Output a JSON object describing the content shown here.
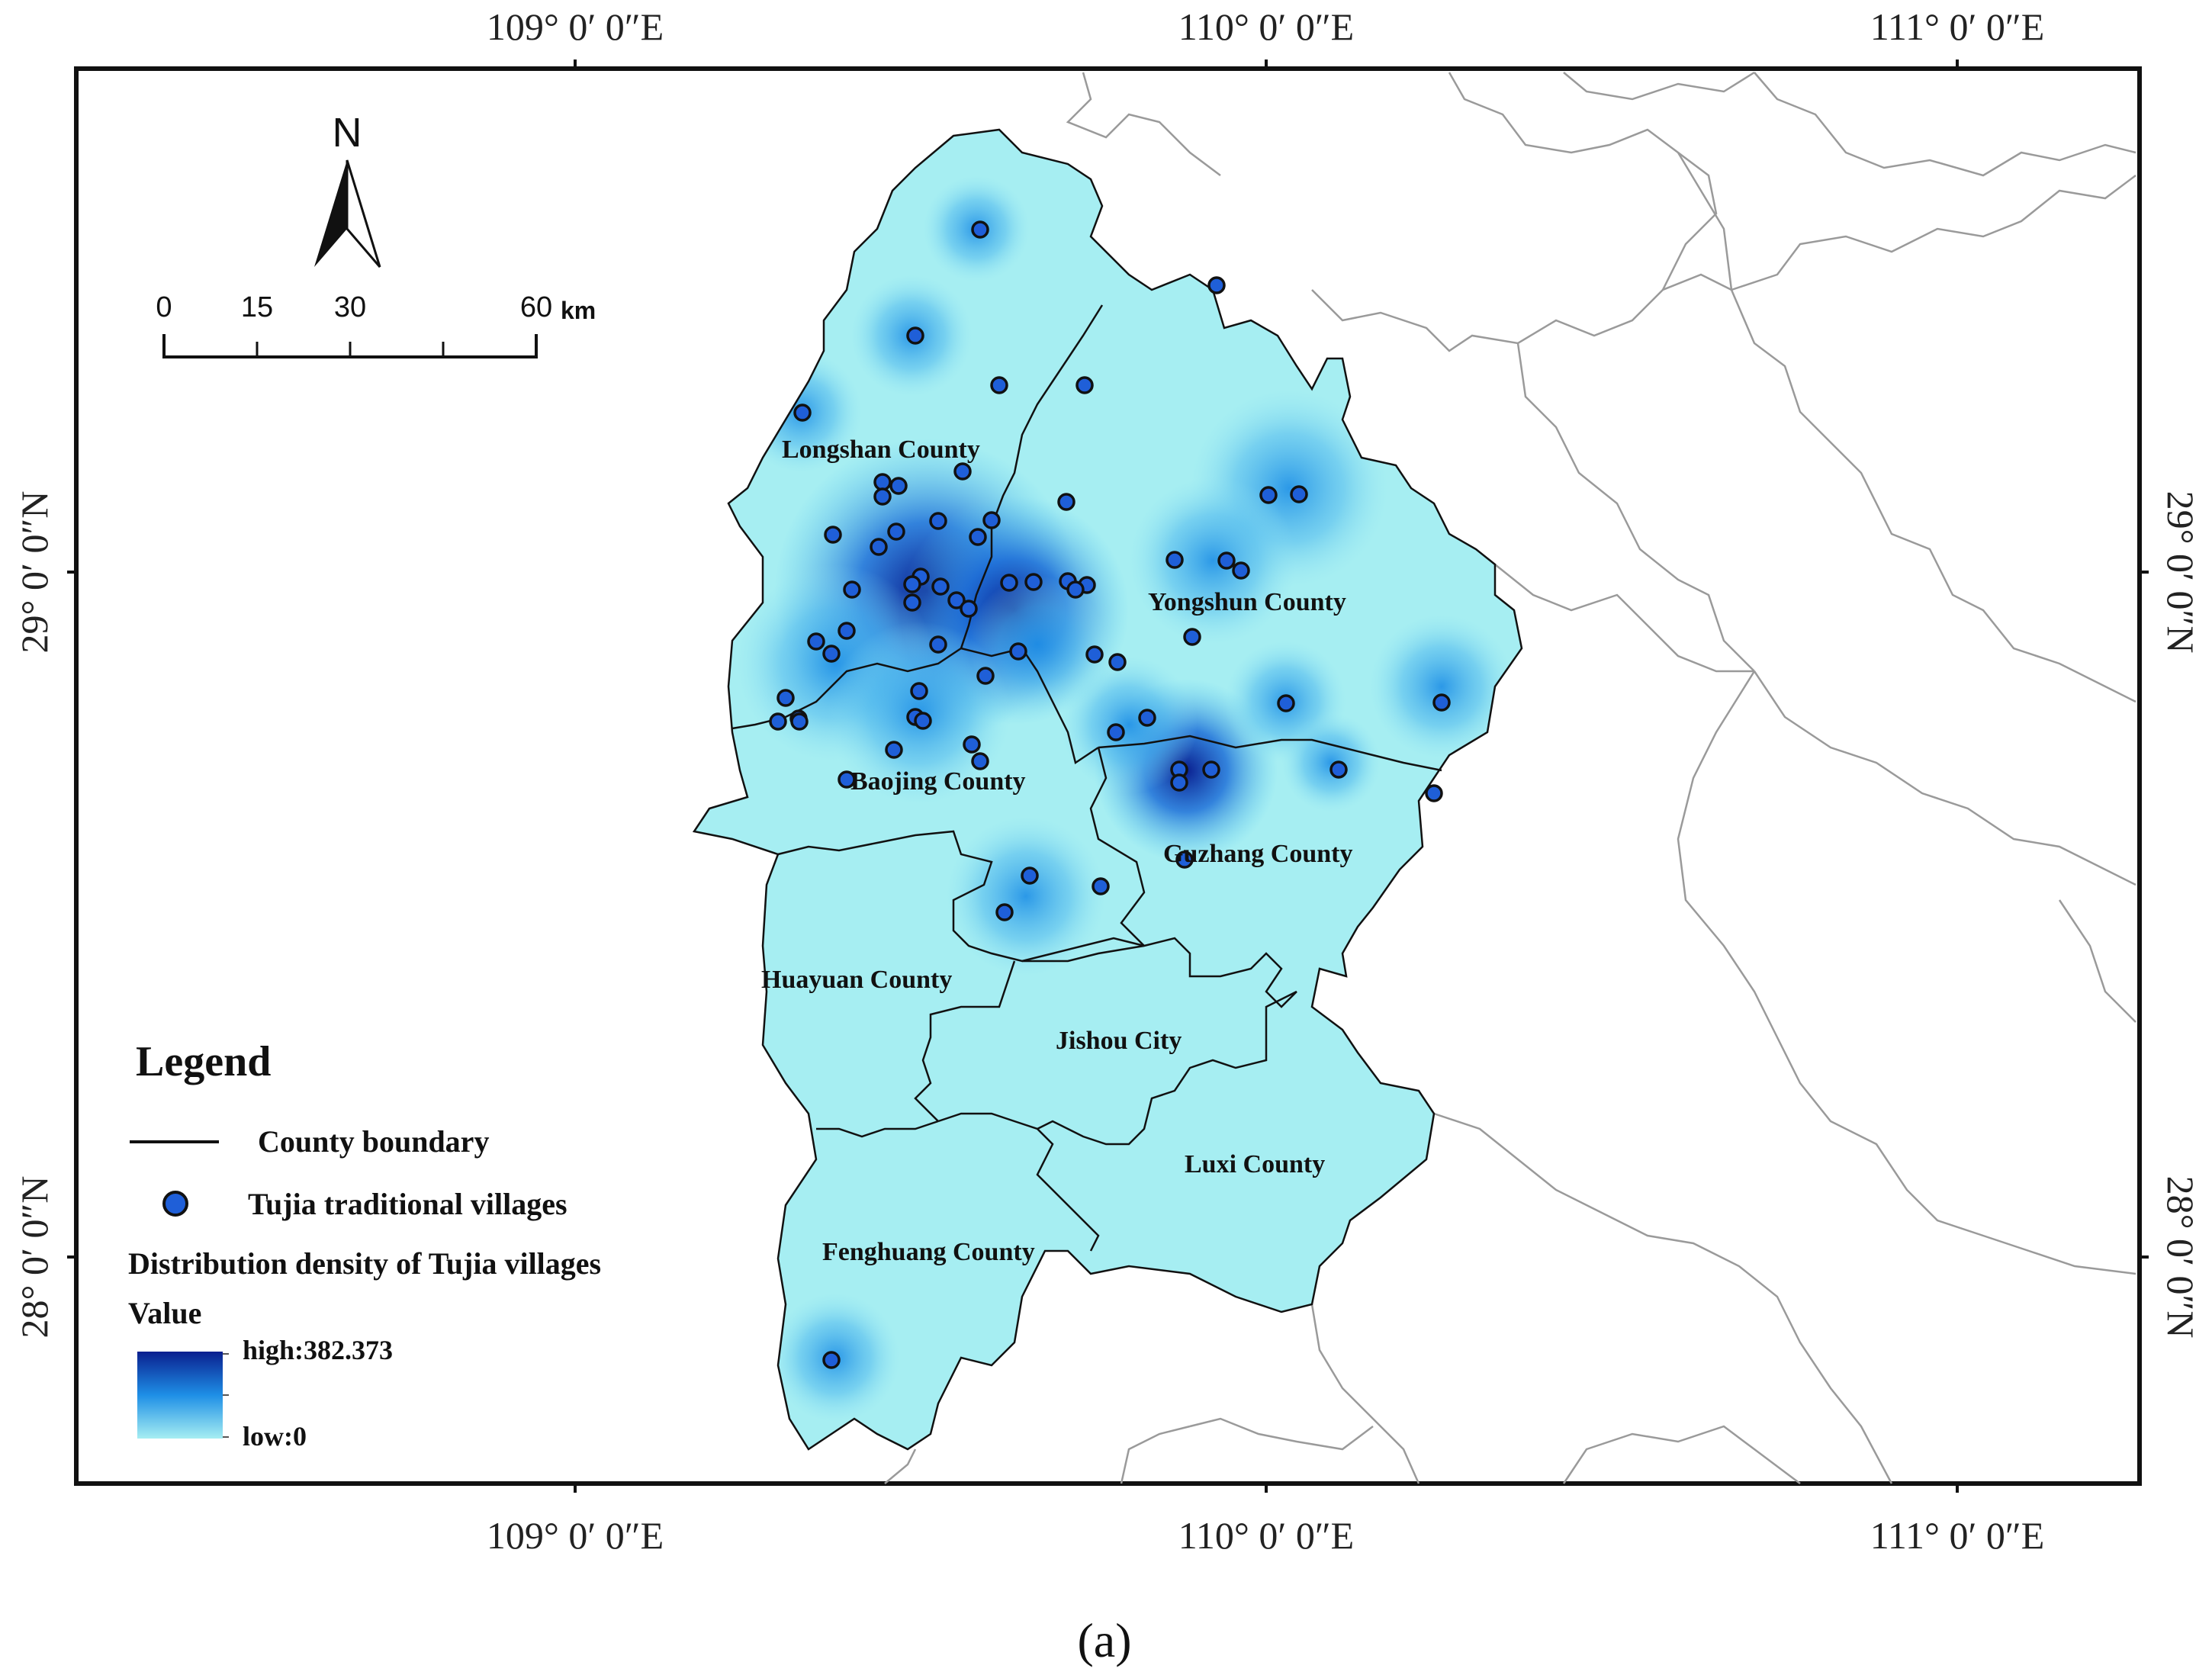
{
  "graticule": {
    "lon_labels": [
      "109° 0′ 0″E",
      "110° 0′ 0″E",
      "111° 0′ 0″E"
    ],
    "lat_labels": [
      "29° 0′ 0″N",
      "28° 0′ 0″N"
    ]
  },
  "north_arrow": {
    "label": "N"
  },
  "scale_bar": {
    "ticks": [
      "0",
      "15",
      "30",
      "60"
    ],
    "unit": "km"
  },
  "counties": [
    {
      "name": "Longshan County"
    },
    {
      "name": "Yongshun County"
    },
    {
      "name": "Baojing County"
    },
    {
      "name": "Guzhang County"
    },
    {
      "name": "Huayuan County"
    },
    {
      "name": "Jishou City"
    },
    {
      "name": "Luxi County"
    },
    {
      "name": "Fenghuang County"
    }
  ],
  "legend": {
    "title": "Legend",
    "boundary_label": "County boundary",
    "village_label": "Tujia traditional villages",
    "density_title": "Distribution density of Tujia villages",
    "value_label": "Value",
    "high_label": "high:382.373",
    "low_label": "low:0"
  },
  "colors": {
    "low": "#a6eef2",
    "mid": "#1e8fe6",
    "high": "#0a1f8f",
    "village_fill": "#1f5fd8",
    "boundary": "#111111",
    "neighbor_boundary": "#9a9a9a"
  },
  "caption": "(a)"
}
